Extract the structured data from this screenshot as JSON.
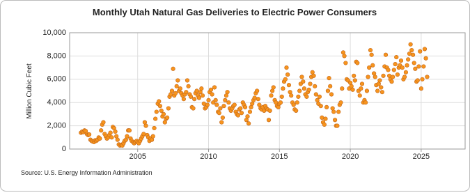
{
  "chart_data": {
    "type": "scatter",
    "title": "Monthly Utah Natural Gas Deliveries to Electric Power Consumers",
    "y_label": "Million Cubic Feet",
    "source": "Source: U.S. Energy Information Administration",
    "color": "#f7941d",
    "grid": true,
    "xlim": [
      2000.2,
      2028.1
    ],
    "xticks": [
      2005,
      2010,
      2015,
      2020,
      2025
    ],
    "ylim": [
      0,
      10000
    ],
    "yticks": [
      0,
      {
        "value": 2000,
        "label": "2,000"
      },
      {
        "value": 4000,
        "label": "4,000"
      },
      {
        "value": 6000,
        "label": "6,000"
      },
      {
        "value": 8000,
        "label": "8,000"
      },
      {
        "value": 10000,
        "label": "10,000"
      }
    ],
    "x": [
      2001.0,
      2001.08,
      2001.17,
      2001.25,
      2001.33,
      2001.42,
      2001.5,
      2001.58,
      2001.67,
      2001.75,
      2001.83,
      2001.92,
      2002.0,
      2002.08,
      2002.17,
      2002.25,
      2002.33,
      2002.42,
      2002.5,
      2002.58,
      2002.67,
      2002.75,
      2002.83,
      2002.92,
      2003.0,
      2003.08,
      2003.17,
      2003.25,
      2003.33,
      2003.42,
      2003.5,
      2003.58,
      2003.67,
      2003.75,
      2003.83,
      2003.92,
      2004.0,
      2004.08,
      2004.17,
      2004.25,
      2004.33,
      2004.42,
      2004.5,
      2004.58,
      2004.67,
      2004.75,
      2004.83,
      2004.92,
      2005.0,
      2005.08,
      2005.17,
      2005.25,
      2005.33,
      2005.42,
      2005.5,
      2005.58,
      2005.67,
      2005.75,
      2005.83,
      2005.92,
      2006.0,
      2006.08,
      2006.17,
      2006.25,
      2006.33,
      2006.42,
      2006.5,
      2006.58,
      2006.67,
      2006.75,
      2006.83,
      2006.92,
      2007.0,
      2007.08,
      2007.17,
      2007.25,
      2007.33,
      2007.42,
      2007.5,
      2007.58,
      2007.67,
      2007.75,
      2007.83,
      2007.92,
      2008.0,
      2008.08,
      2008.17,
      2008.25,
      2008.33,
      2008.42,
      2008.5,
      2008.58,
      2008.67,
      2008.75,
      2008.83,
      2008.92,
      2009.0,
      2009.08,
      2009.17,
      2009.25,
      2009.33,
      2009.42,
      2009.5,
      2009.58,
      2009.67,
      2009.75,
      2009.83,
      2009.92,
      2010.0,
      2010.08,
      2010.17,
      2010.25,
      2010.33,
      2010.42,
      2010.5,
      2010.58,
      2010.67,
      2010.75,
      2010.83,
      2010.92,
      2011.0,
      2011.08,
      2011.17,
      2011.25,
      2011.33,
      2011.42,
      2011.5,
      2011.58,
      2011.67,
      2011.75,
      2011.83,
      2011.92,
      2012.0,
      2012.08,
      2012.17,
      2012.25,
      2012.33,
      2012.42,
      2012.5,
      2012.58,
      2012.67,
      2012.75,
      2012.83,
      2012.92,
      2013.0,
      2013.08,
      2013.17,
      2013.25,
      2013.33,
      2013.42,
      2013.5,
      2013.58,
      2013.67,
      2013.75,
      2013.83,
      2013.92,
      2014.0,
      2014.08,
      2014.17,
      2014.25,
      2014.33,
      2014.42,
      2014.5,
      2014.58,
      2014.67,
      2014.75,
      2014.83,
      2014.92,
      2015.0,
      2015.08,
      2015.17,
      2015.25,
      2015.33,
      2015.42,
      2015.5,
      2015.58,
      2015.67,
      2015.75,
      2015.83,
      2015.92,
      2016.0,
      2016.08,
      2016.17,
      2016.25,
      2016.33,
      2016.42,
      2016.5,
      2016.58,
      2016.67,
      2016.75,
      2016.83,
      2016.92,
      2017.0,
      2017.08,
      2017.17,
      2017.25,
      2017.33,
      2017.42,
      2017.5,
      2017.58,
      2017.67,
      2017.75,
      2017.83,
      2017.92,
      2018.0,
      2018.08,
      2018.17,
      2018.25,
      2018.33,
      2018.42,
      2018.5,
      2018.58,
      2018.67,
      2018.75,
      2018.83,
      2018.92,
      2019.0,
      2019.08,
      2019.17,
      2019.25,
      2019.33,
      2019.42,
      2019.5,
      2019.58,
      2019.67,
      2019.75,
      2019.83,
      2019.92,
      2020.0,
      2020.08,
      2020.17,
      2020.25,
      2020.33,
      2020.42,
      2020.5,
      2020.58,
      2020.67,
      2020.75,
      2020.83,
      2020.92,
      2021.0,
      2021.08,
      2021.17,
      2021.25,
      2021.33,
      2021.42,
      2021.5,
      2021.58,
      2021.67,
      2021.75,
      2021.83,
      2021.92,
      2022.0,
      2022.08,
      2022.17,
      2022.25,
      2022.33,
      2022.42,
      2022.5,
      2022.58,
      2022.67,
      2022.75,
      2022.83,
      2022.92,
      2023.0,
      2023.08,
      2023.17,
      2023.25,
      2023.33,
      2023.42,
      2023.5,
      2023.58,
      2023.67,
      2023.75,
      2023.83,
      2023.92,
      2024.0,
      2024.08,
      2024.17,
      2024.25,
      2024.33,
      2024.42,
      2024.5,
      2024.58,
      2024.67,
      2024.75,
      2024.83,
      2024.92,
      2025.0,
      2025.08,
      2025.17,
      2025.25,
      2025.33,
      2025.42
    ],
    "values": [
      1400,
      1500,
      1450,
      1600,
      1550,
      1300,
      1200,
      1250,
      800,
      700,
      650,
      600,
      750,
      700,
      800,
      1000,
      900,
      1600,
      2100,
      2300,
      1300,
      1100,
      900,
      1000,
      1200,
      1400,
      1000,
      1900,
      1800,
      1500,
      1100,
      800,
      400,
      300,
      350,
      300,
      500,
      700,
      800,
      1100,
      1600,
      1600,
      900,
      700,
      600,
      500,
      600,
      700,
      600,
      500,
      700,
      900,
      1100,
      1300,
      2300,
      2000,
      1200,
      1000,
      700,
      900,
      800,
      1100,
      1800,
      2600,
      3200,
      3900,
      4100,
      3700,
      3300,
      2800,
      3000,
      2300,
      2600,
      2700,
      3500,
      4500,
      4700,
      5000,
      6900,
      4600,
      4800,
      5400,
      5900,
      5000,
      5200,
      4800,
      4600,
      4300,
      4700,
      4900,
      5900,
      5400,
      4700,
      4500,
      3600,
      3500,
      4300,
      4800,
      5000,
      4600,
      4400,
      4900,
      5200,
      4600,
      3900,
      3500,
      3600,
      3800,
      4200,
      4900,
      5100,
      4700,
      4000,
      5300,
      4200,
      3800,
      3200,
      3100,
      3500,
      2300,
      2700,
      3700,
      4200,
      4600,
      4900,
      4000,
      3500,
      3300,
      3500,
      3700,
      3800,
      3200,
      3000,
      2900,
      3400,
      3500,
      3100,
      4000,
      3800,
      3600,
      2500,
      2800,
      2200,
      3200,
      3600,
      3900,
      4200,
      4400,
      4800,
      5000,
      4300,
      3800,
      3500,
      3400,
      3600,
      3300,
      3700,
      3500,
      3400,
      2500,
      3300,
      4600,
      5000,
      5300,
      4200,
      4000,
      3700,
      3600,
      3900,
      4000,
      4500,
      5200,
      5800,
      6000,
      7000,
      6400,
      5500,
      4900,
      4600,
      4000,
      3800,
      3400,
      3300,
      4000,
      4500,
      5000,
      5600,
      6200,
      5800,
      5200,
      4700,
      4500,
      4900,
      5100,
      5600,
      6200,
      6600,
      6300,
      5400,
      4700,
      4200,
      3900,
      4500,
      3700,
      2700,
      2300,
      2100,
      2600,
      3600,
      5000,
      6100,
      5400,
      4700,
      3500,
      3200,
      2500,
      2000,
      2000,
      3200,
      3800,
      4000,
      5200,
      8300,
      8000,
      7400,
      6000,
      5900,
      5200,
      5700,
      5400,
      5100,
      6300,
      5900,
      7500,
      7400,
      5000,
      4600,
      5200,
      5600,
      4000,
      4200,
      4000,
      5000,
      6200,
      7000,
      8500,
      8100,
      7200,
      6500,
      6200,
      5500,
      5000,
      5600,
      5900,
      5300,
      4900,
      6300,
      7100,
      8100,
      7000,
      6800,
      6300,
      6000,
      5800,
      6200,
      6800,
      7300,
      7900,
      6400,
      7000,
      7200,
      7600,
      7000,
      6000,
      6200,
      6600,
      7200,
      7700,
      8200,
      9000,
      8500,
      8100,
      7400,
      6900,
      5800,
      5900,
      7100,
      8400,
      5200,
      6000,
      7100,
      8600,
      7800,
      6200
    ]
  }
}
